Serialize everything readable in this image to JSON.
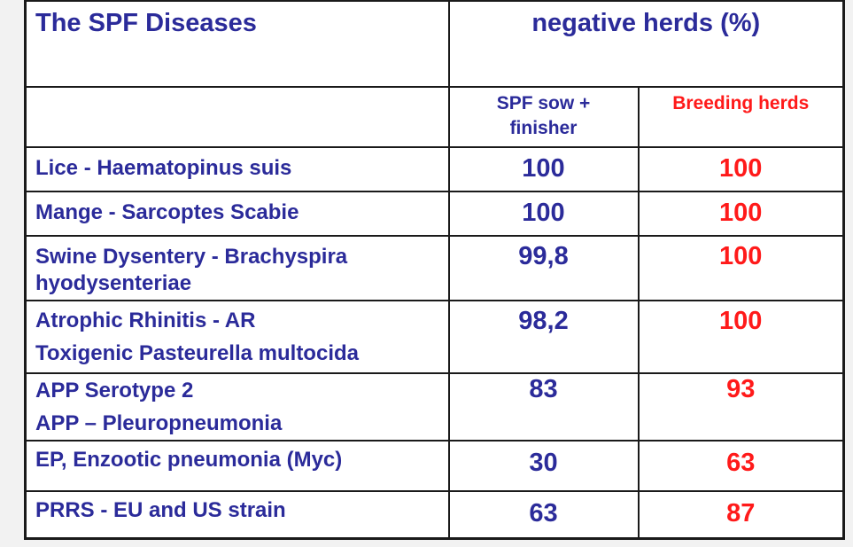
{
  "table": {
    "title": "The SPF Diseases",
    "header_right": "negative herds (%)",
    "sub_col1_line1": "SPF sow +",
    "sub_col1_line2": "finisher",
    "sub_col2": "Breeding herds",
    "rows": [
      {
        "line1": "Lice - Haematopinus suis",
        "line2": "",
        "spf": "100",
        "breeding": "100"
      },
      {
        "line1": "Mange  - Sarcoptes Scabie",
        "line2": "",
        "spf": "100",
        "breeding": "100"
      },
      {
        "line1": "Swine Dysentery - Brachyspira",
        "line2": "hyodysenteriae",
        "spf": "99,8",
        "breeding": "100"
      },
      {
        "line1": "Atrophic Rhinitis - AR",
        "line2": "Toxigenic Pasteurella multocida",
        "spf": "98,2",
        "breeding": "100"
      },
      {
        "line1": "APP Serotype 2",
        "line2": "APP – Pleuropneumonia",
        "spf": "83",
        "breeding": "93"
      },
      {
        "line1": "EP, Enzootic pneumonia (Myc)",
        "line2": "",
        "spf": "30",
        "breeding": "63"
      },
      {
        "line1": "PRRS  - EU and US strain",
        "line2": "",
        "spf": "63",
        "breeding": "87"
      }
    ]
  },
  "colors": {
    "blue_text": "#2b2b9a",
    "red_text": "#ff1a1a"
  }
}
